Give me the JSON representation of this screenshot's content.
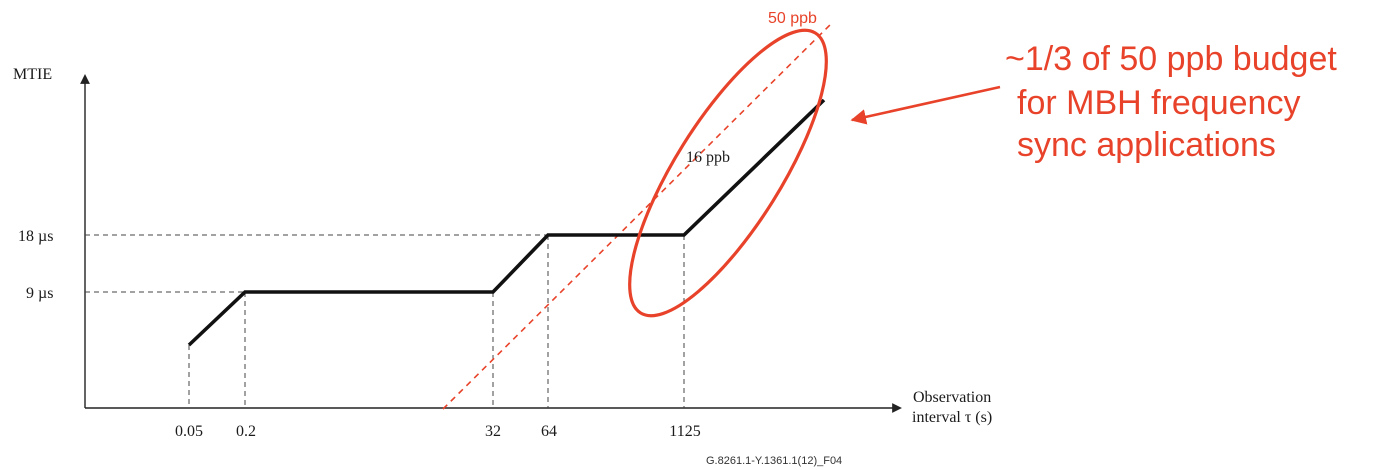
{
  "chart_data": {
    "type": "line",
    "y_axis_label": "MTIE",
    "x_axis_label_line1": "Observation",
    "x_axis_label_line2": "interval τ (s)",
    "x_ticks": [
      "0.05",
      "0.2",
      "32",
      "64",
      "1125"
    ],
    "y_ticks": [
      "9 µs",
      "18 µs"
    ],
    "series": [
      {
        "x": [
          "0.05",
          "0.2",
          "32",
          "64",
          "1125",
          "end"
        ],
        "y_label": [
          "",
          "9 µs",
          "9 µs",
          "18 µs",
          "18 µs",
          ""
        ]
      }
    ],
    "slope_label_mask": "16 ppb",
    "reference_line_label": "50 ppb",
    "annotation": [
      "~1/3 of 50 ppb budget",
      "for MBH frequency",
      "sync applications"
    ],
    "footer_id": "G.8261.1-Y.1361.1(12)_F04",
    "colors": {
      "mask": "#111111",
      "reference": "#e8432a",
      "axis": "#222222",
      "guide": "#444444"
    }
  }
}
